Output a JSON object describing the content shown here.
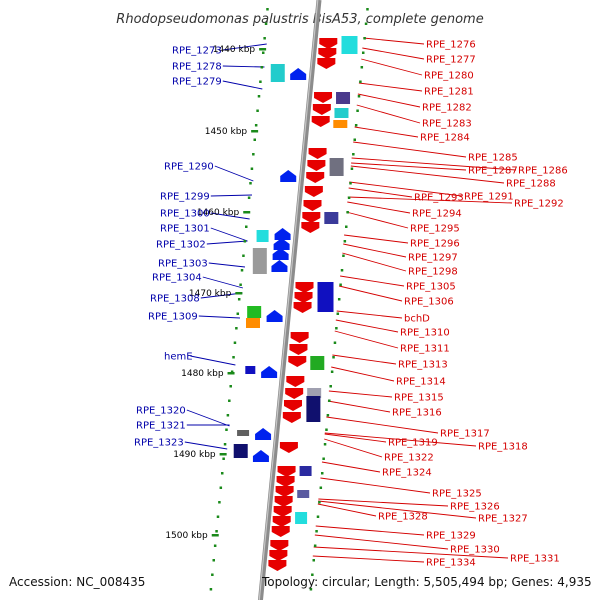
{
  "title": "Rhodopseudomonas palustris BisA53, complete genome",
  "footer": {
    "accession": "Accession: NC_008435",
    "summary": "Topology: circular; Length: 5,505,494 bp; Genes: 4,935"
  },
  "colors": {
    "backbone": "#8c8c8c",
    "forward_gene": "#e60000",
    "reverse_gene": "#0022ee",
    "forward_label": "#d40000",
    "reverse_label": "#0000aa",
    "tick": "#1a8a1a"
  },
  "scale_labels": [
    "1440 kbp",
    "1450 kbp",
    "1460 kbp",
    "1470 kbp",
    "1480 kbp",
    "1490 kbp",
    "1500 kbp"
  ],
  "reverse_strand_labels": [
    "RPE_1273",
    "RPE_1278",
    "RPE_1279",
    "RPE_1290",
    "RPE_1299",
    "RPE_1300",
    "RPE_1301",
    "RPE_1302",
    "RPE_1303",
    "RPE_1304",
    "RPE_1308",
    "RPE_1309",
    "hemE",
    "RPE_1320",
    "RPE_1321",
    "RPE_1323"
  ],
  "forward_strand_labels": [
    "RPE_1276",
    "RPE_1277",
    "RPE_1280",
    "RPE_1281",
    "RPE_1282",
    "RPE_1283",
    "RPE_1284",
    "RPE_1285",
    "RPE_1287",
    "RPE_1286",
    "RPE_1288",
    "RPE_1293",
    "RPE_1291",
    "RPE_1292",
    "RPE_1294",
    "RPE_1295",
    "RPE_1296",
    "RPE_1297",
    "RPE_1298",
    "RPE_1305",
    "RPE_1306",
    "bchD",
    "RPE_1310",
    "RPE_1311",
    "RPE_1313",
    "RPE_1314",
    "RPE_1315",
    "RPE_1316",
    "RPE_1317",
    "RPE_1319",
    "RPE_1318",
    "RPE_1322",
    "RPE_1324",
    "RPE_1325",
    "RPE_1326",
    "RPE_1328",
    "RPE_1327",
    "RPE_1329",
    "RPE_1330",
    "RPE_1334",
    "RPE_1331"
  ]
}
